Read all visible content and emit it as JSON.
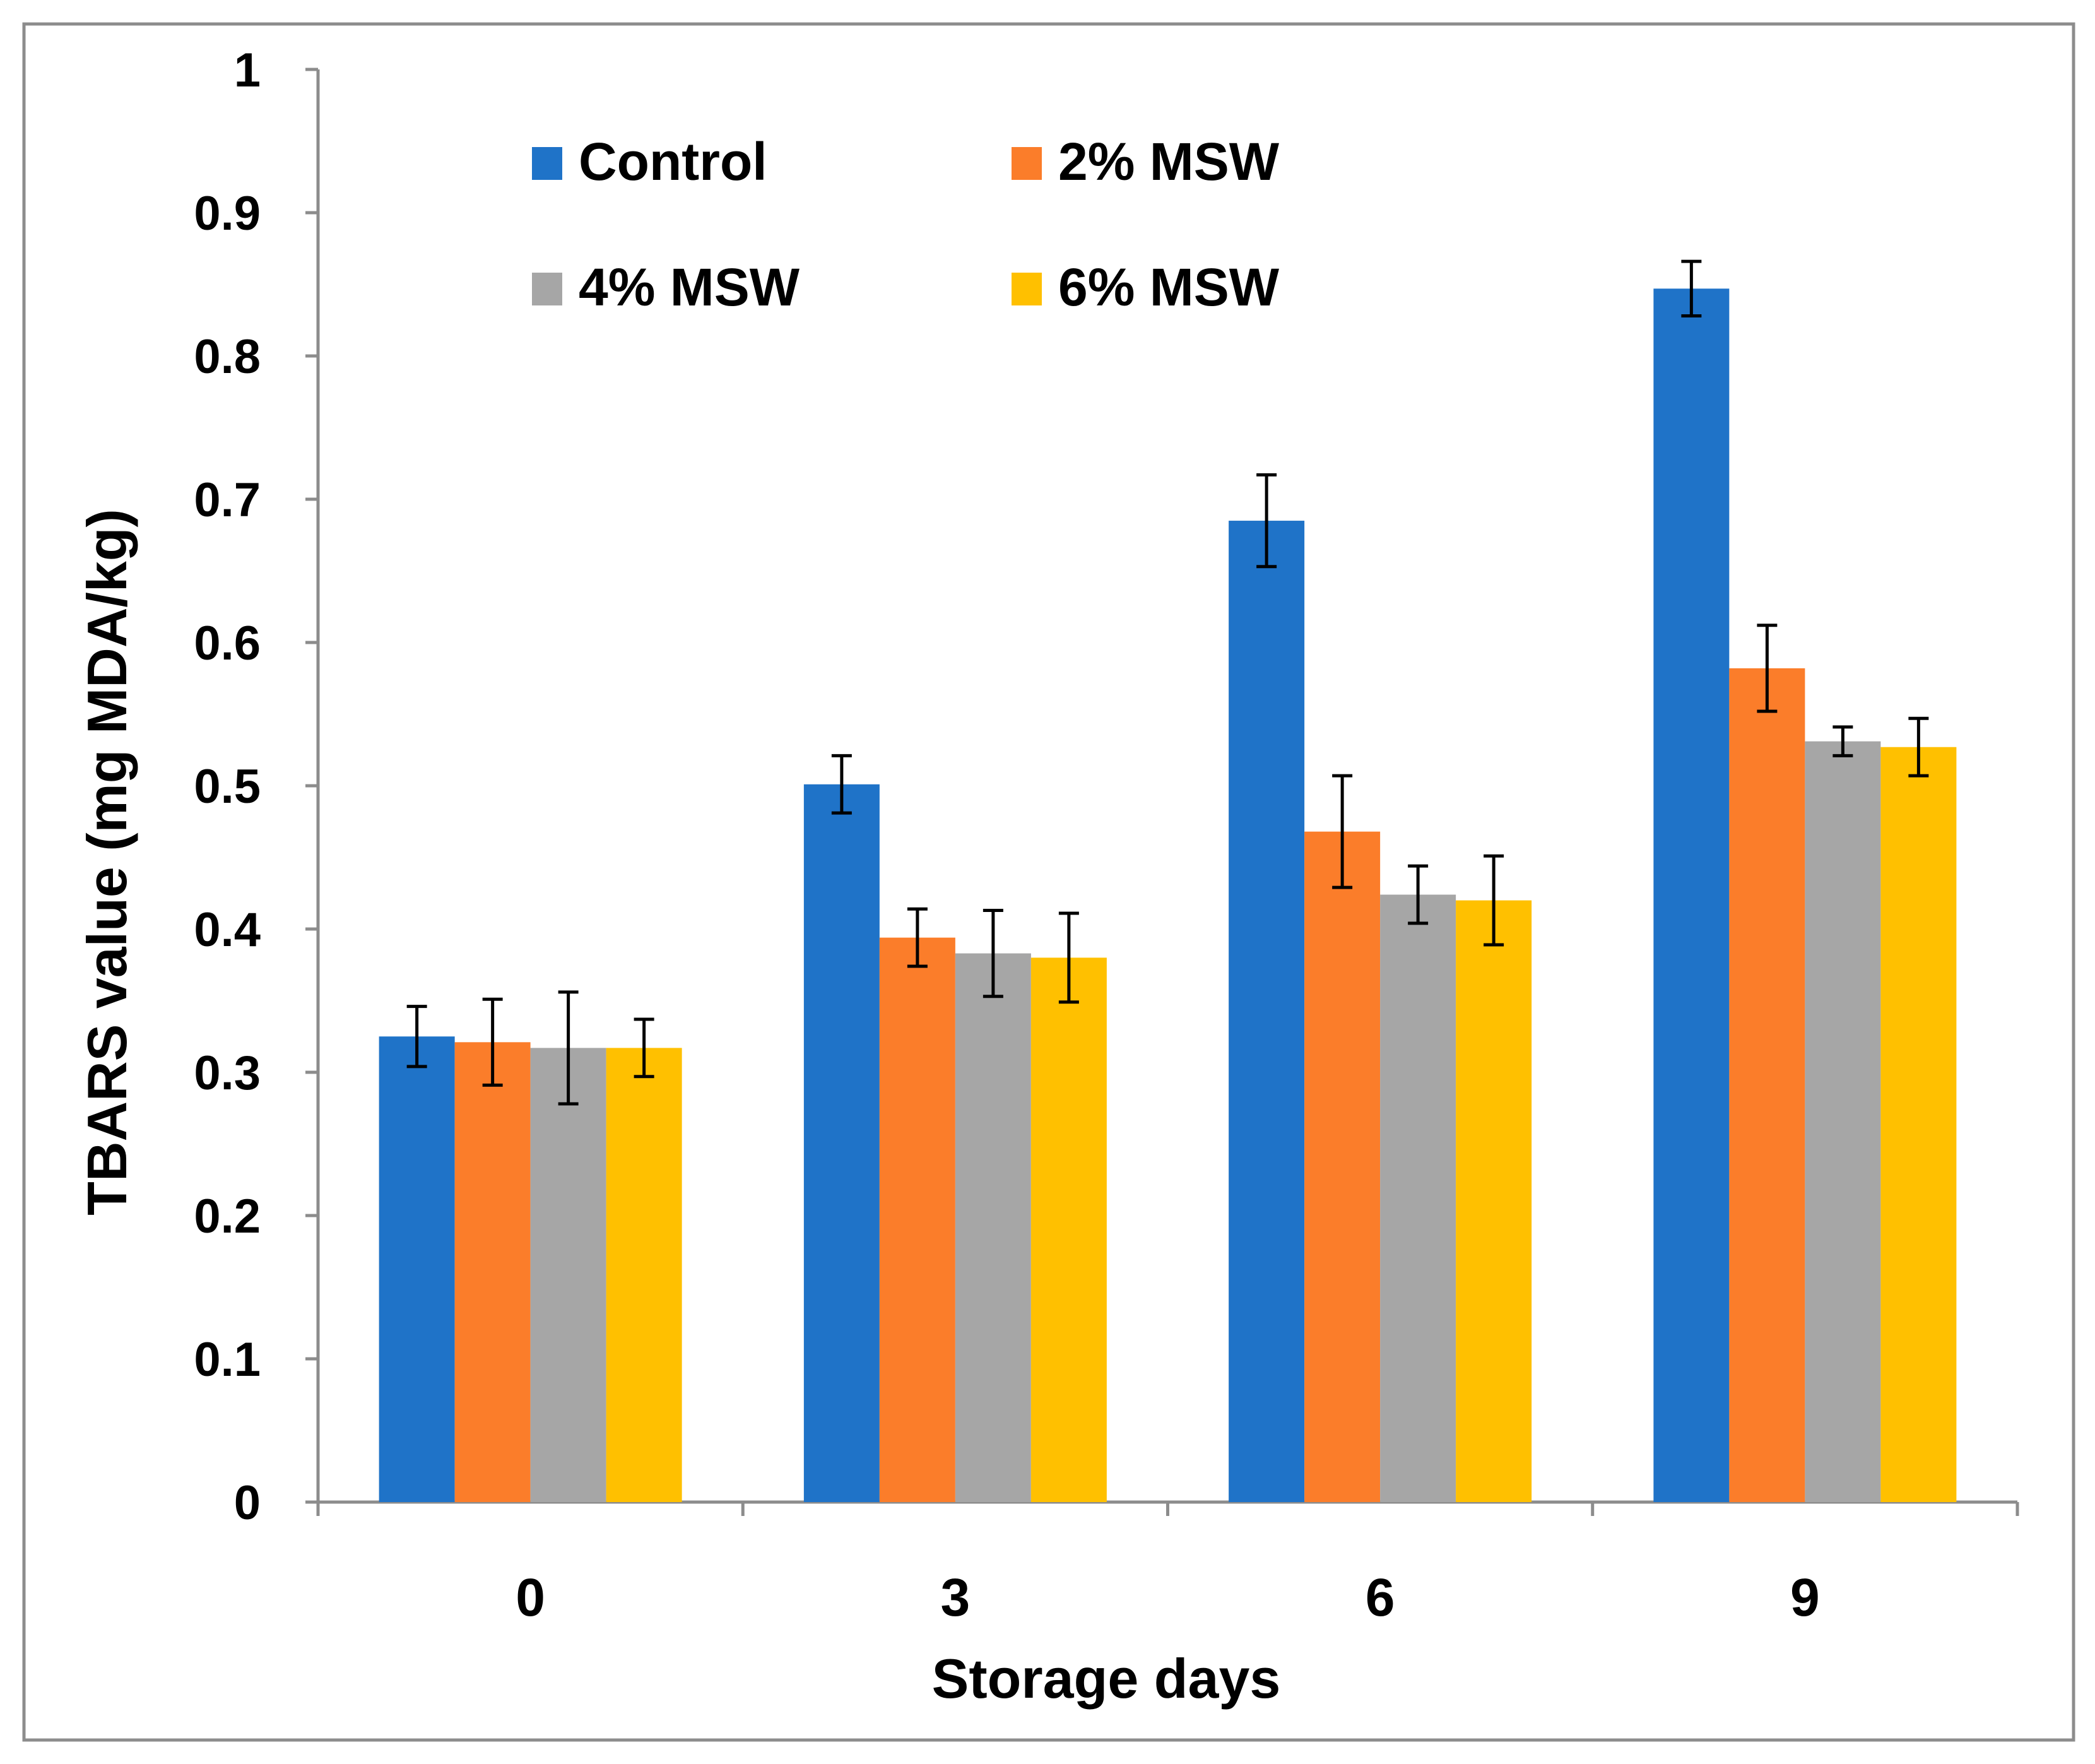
{
  "chart_data": {
    "type": "bar",
    "title": "",
    "xlabel": "Storage days",
    "ylabel": "TBARS value (mg MDA/kg)",
    "categories": [
      "0",
      "3",
      "6",
      "9"
    ],
    "ylim": [
      0,
      1
    ],
    "yticks": [
      "0",
      "0.1",
      "0.2",
      "0.3",
      "0.4",
      "0.5",
      "0.6",
      "0.7",
      "0.8",
      "0.9",
      "1"
    ],
    "grid": false,
    "legend_position": "top-left",
    "series": [
      {
        "name": "Control",
        "color": "#1f73c8",
        "values": [
          0.325,
          0.501,
          0.685,
          0.847
        ],
        "errors": [
          0.021,
          0.02,
          0.032,
          0.019
        ]
      },
      {
        "name": "2% MSW",
        "color": "#fb7d2a",
        "values": [
          0.321,
          0.394,
          0.468,
          0.582
        ],
        "errors": [
          0.03,
          0.02,
          0.039,
          0.03
        ]
      },
      {
        "name": "4% MSW",
        "color": "#a6a6a6",
        "values": [
          0.317,
          0.383,
          0.424,
          0.531
        ],
        "errors": [
          0.039,
          0.03,
          0.02,
          0.01
        ]
      },
      {
        "name": "6% MSW",
        "color": "#ffc000",
        "values": [
          0.317,
          0.38,
          0.42,
          0.527
        ],
        "errors": [
          0.02,
          0.031,
          0.031,
          0.02
        ]
      }
    ]
  }
}
